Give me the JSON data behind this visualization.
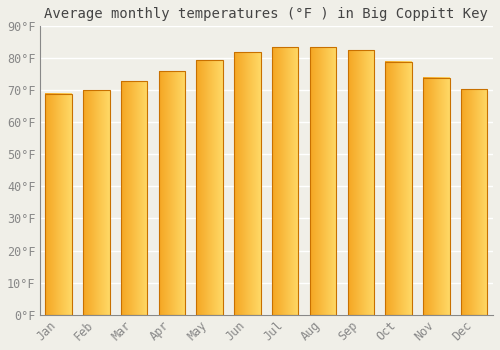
{
  "title": "Average monthly temperatures (°F ) in Big Coppitt Key",
  "months": [
    "Jan",
    "Feb",
    "Mar",
    "Apr",
    "May",
    "Jun",
    "Jul",
    "Aug",
    "Sep",
    "Oct",
    "Nov",
    "Dec"
  ],
  "values": [
    69,
    70,
    73,
    76,
    79.5,
    82,
    83.5,
    83.5,
    82.5,
    79,
    74,
    70.5
  ],
  "bar_color_left": "#F5A623",
  "bar_color_right": "#FFD966",
  "bar_edge_color": "#C87000",
  "ylim": [
    0,
    90
  ],
  "yticks": [
    0,
    10,
    20,
    30,
    40,
    50,
    60,
    70,
    80,
    90
  ],
  "ytick_labels": [
    "0°F",
    "10°F",
    "20°F",
    "30°F",
    "40°F",
    "50°F",
    "60°F",
    "70°F",
    "80°F",
    "90°F"
  ],
  "background_color": "#f0efe8",
  "grid_color": "#ffffff",
  "title_fontsize": 10,
  "tick_fontsize": 8.5,
  "title_color": "#444444",
  "tick_color": "#888888"
}
